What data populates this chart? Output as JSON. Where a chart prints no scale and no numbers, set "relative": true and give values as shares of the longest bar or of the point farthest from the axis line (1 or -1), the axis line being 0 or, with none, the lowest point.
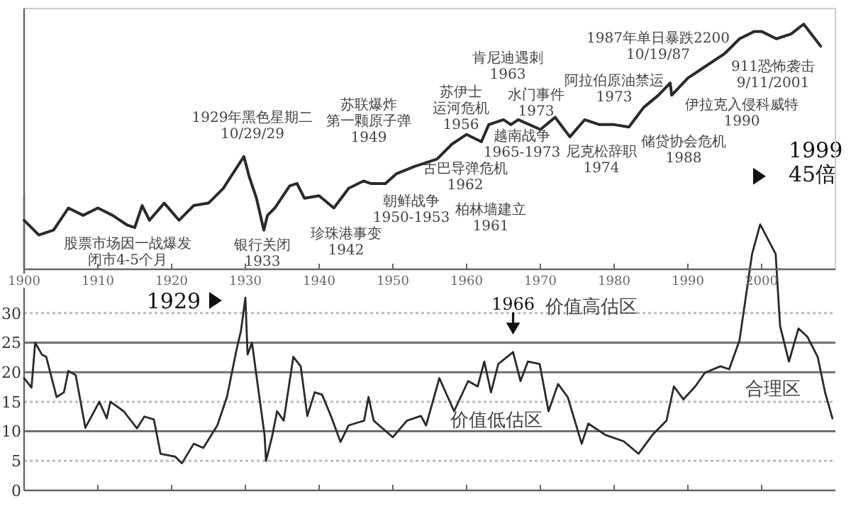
{
  "chart_data": [
    {
      "type": "line",
      "relative": true,
      "color": "#2a2a2a",
      "xlim": [
        1900,
        2010
      ],
      "xticks": [
        1900,
        1910,
        1920,
        1930,
        1940,
        1950,
        1960,
        1970,
        1980,
        1990,
        2000
      ],
      "tick_labels": "x",
      "x": [
        1900,
        1902,
        1904,
        1906,
        1908,
        1910,
        1912,
        1914,
        1915,
        1916,
        1917,
        1919,
        1921,
        1923,
        1925,
        1927,
        1929.8,
        1930.5,
        1931.5,
        1932.5,
        1933,
        1934,
        1936,
        1937,
        1938,
        1940,
        1942,
        1944,
        1946,
        1947,
        1949,
        1950.5,
        1953,
        1956,
        1958,
        1960,
        1962,
        1963,
        1965,
        1966,
        1967,
        1970,
        1972,
        1974,
        1976,
        1978,
        1980,
        1982,
        1984,
        1986,
        1987.6,
        1987.8,
        1990,
        1992,
        1995,
        1997,
        1999,
        2000,
        2002,
        2004,
        2005.7,
        2008
      ],
      "values": [
        0.2,
        0.14,
        0.16,
        0.25,
        0.22,
        0.25,
        0.22,
        0.18,
        0.17,
        0.26,
        0.2,
        0.27,
        0.2,
        0.26,
        0.27,
        0.33,
        0.46,
        0.38,
        0.29,
        0.16,
        0.22,
        0.25,
        0.34,
        0.35,
        0.29,
        0.3,
        0.25,
        0.33,
        0.36,
        0.35,
        0.35,
        0.39,
        0.42,
        0.45,
        0.51,
        0.55,
        0.52,
        0.59,
        0.61,
        0.59,
        0.61,
        0.57,
        0.62,
        0.54,
        0.61,
        0.59,
        0.59,
        0.58,
        0.66,
        0.71,
        0.76,
        0.71,
        0.78,
        0.82,
        0.88,
        0.94,
        0.97,
        0.97,
        0.94,
        0.96,
        1.0,
        0.91
      ],
      "annotations": [
        "股票市场因一战爆发闭市4-5个月",
        "1929年黑色星期二\n10/29/29",
        "银行关闭\n1933",
        "珍珠港事变\n1942",
        "苏联爆炸第一颗原子弹\n1949",
        "朝鲜战争\n1950-1953",
        "苏伊士运河危机\n1956",
        "肯尼迪遇刺\n1963",
        "水门事件\n1973",
        "阿拉伯原油禁运\n1973",
        "1987年单日暴跌2200\n10/19/87",
        "911恐怖袭击\n9/11/2001",
        "古巴导弹危机\n1962",
        "柏林墙建立\n1961",
        "越南战争\n1965-1973",
        "尼克松辞职\n1974",
        "储贷协会危机\n1988",
        "伊拉克入侵科威特\n1990"
      ]
    },
    {
      "type": "line",
      "color": "#2a2a2a",
      "xlim": [
        1900,
        2010
      ],
      "xticks": [
        1910,
        1920,
        1930,
        1940,
        1950,
        1960,
        1970,
        1980,
        1990,
        2000
      ],
      "ylim": [
        0,
        50
      ],
      "yticks": [
        0,
        5,
        10,
        15,
        20,
        25,
        30
      ],
      "tick_labels": "y",
      "ref_lines": [
        {
          "axis": "y",
          "value": 5,
          "color": "#bbbbbb",
          "line_style": "dotted"
        },
        {
          "axis": "y",
          "value": 10,
          "color": "#707070"
        },
        {
          "axis": "y",
          "value": 15,
          "color": "#bbbbbb",
          "line_style": "dotted"
        },
        {
          "axis": "y",
          "value": 20,
          "color": "#707070"
        },
        {
          "axis": "y",
          "value": 25,
          "color": "#707070"
        },
        {
          "axis": "y",
          "value": 30,
          "color": "#bbbbbb",
          "line_style": "dotted"
        }
      ],
      "x": [
        1900,
        1901,
        1901.5,
        1902.4,
        1903,
        1904.4,
        1905.4,
        1906,
        1907,
        1908.3,
        1910.2,
        1911.2,
        1911.7,
        1913.5,
        1915.3,
        1916.3,
        1917.6,
        1918.5,
        1920.5,
        1921.4,
        1923,
        1924.3,
        1926.2,
        1927.5,
        1928.8,
        1929.4,
        1930,
        1930.3,
        1930.9,
        1931.7,
        1932.6,
        1932.8,
        1933.6,
        1934.3,
        1935.2,
        1936.5,
        1937.5,
        1938.4,
        1939.4,
        1940.4,
        1941.6,
        1942.9,
        1944,
        1946.1,
        1946.7,
        1947.4,
        1950,
        1951.9,
        1953.8,
        1954.5,
        1956.3,
        1958.3,
        1960.2,
        1961.5,
        1962.4,
        1963.3,
        1964.3,
        1966.3,
        1967.3,
        1968.3,
        1969.9,
        1971.1,
        1972.4,
        1973.7,
        1975.6,
        1976.5,
        1978.8,
        1981.3,
        1983.3,
        1985.2,
        1987.1,
        1988.1,
        1989.4,
        1991,
        1992.3,
        1994.4,
        1995.6,
        1997,
        1998.7,
        1999.8,
        2001.9,
        2002.5,
        2003.7,
        2005,
        2006.2,
        2007.6,
        2008.6,
        2009.6
      ],
      "values": [
        19,
        17.4,
        25,
        23,
        22.6,
        15.8,
        16.6,
        20.2,
        19.5,
        10.6,
        15,
        12.2,
        15,
        13.4,
        10.5,
        12.5,
        12,
        6.2,
        5.7,
        4.6,
        7.9,
        7.2,
        11,
        15.8,
        23.8,
        27,
        32.6,
        23,
        25,
        17.6,
        9.4,
        5,
        9,
        13.4,
        11.8,
        22.6,
        21,
        12.6,
        16.6,
        16.2,
        12.6,
        8.2,
        11,
        11.8,
        15.8,
        11.8,
        9,
        11.8,
        12.6,
        11,
        19,
        13.4,
        18.5,
        17.6,
        21.8,
        16.6,
        21.4,
        23.4,
        18.5,
        21.8,
        21.4,
        13.4,
        18,
        15.8,
        7.9,
        11.3,
        9.4,
        8.3,
        6.2,
        9.4,
        11.8,
        17.6,
        15.4,
        17.6,
        19.9,
        21,
        20.5,
        25.4,
        40,
        45,
        40,
        27.8,
        21.8,
        27.4,
        26,
        22.6,
        16.6,
        12.2
      ],
      "annotations": [
        {
          "text": "1929",
          "x": 1929.9,
          "y": 32.6
        },
        {
          "text": "1966",
          "x": 1966.3,
          "y": 23.4
        },
        {
          "text": "1999\n45倍",
          "x": 1999.8,
          "y": 45
        },
        "价值高估区",
        "合理区",
        "价值低估区"
      ]
    }
  ]
}
